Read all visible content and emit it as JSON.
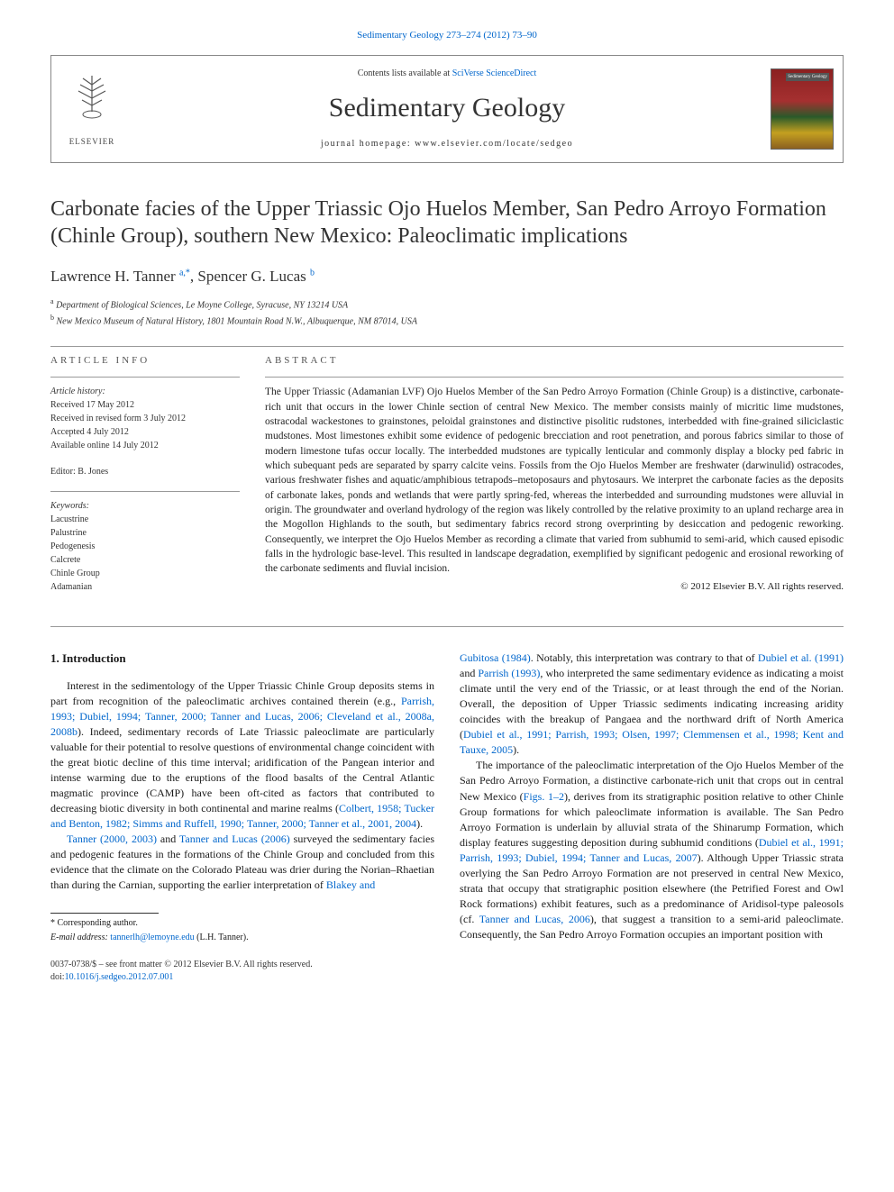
{
  "journal_ref": "Sedimentary Geology 273–274 (2012) 73–90",
  "header": {
    "contents_prefix": "Contents lists available at ",
    "contents_link": "SciVerse ScienceDirect",
    "journal_name": "Sedimentary Geology",
    "homepage_prefix": "journal homepage: ",
    "homepage_url": "www.elsevier.com/locate/sedgeo",
    "publisher_name": "ELSEVIER",
    "cover_tag": "Sedimentary Geology"
  },
  "article": {
    "title": "Carbonate facies of the Upper Triassic Ojo Huelos Member, San Pedro Arroyo Formation (Chinle Group), southern New Mexico: Paleoclimatic implications",
    "authors_html": "Lawrence H. Tanner <span class='sup'>a,</span><span class='sup'>*</span>, Spencer G. Lucas <span class='sup'>b</span>",
    "affiliations": [
      {
        "sup": "a",
        "text": "Department of Biological Sciences, Le Moyne College, Syracuse, NY 13214 USA"
      },
      {
        "sup": "b",
        "text": "New Mexico Museum of Natural History, 1801 Mountain Road N.W., Albuquerque, NM 87014, USA"
      }
    ]
  },
  "article_info": {
    "label": "ARTICLE INFO",
    "history_label": "Article history:",
    "history": [
      "Received 17 May 2012",
      "Received in revised form 3 July 2012",
      "Accepted 4 July 2012",
      "Available online 14 July 2012"
    ],
    "editor_label": "Editor:",
    "editor": "B. Jones",
    "keywords_label": "Keywords:",
    "keywords": [
      "Lacustrine",
      "Palustrine",
      "Pedogenesis",
      "Calcrete",
      "Chinle Group",
      "Adamanian"
    ]
  },
  "abstract": {
    "label": "ABSTRACT",
    "text": "The Upper Triassic (Adamanian LVF) Ojo Huelos Member of the San Pedro Arroyo Formation (Chinle Group) is a distinctive, carbonate-rich unit that occurs in the lower Chinle section of central New Mexico. The member consists mainly of micritic lime mudstones, ostracodal wackestones to grainstones, peloidal grainstones and distinctive pisolitic rudstones, interbedded with fine-grained siliciclastic mudstones. Most limestones exhibit some evidence of pedogenic brecciation and root penetration, and porous fabrics similar to those of modern limestone tufas occur locally. The interbedded mudstones are typically lenticular and commonly display a blocky ped fabric in which subequant peds are separated by sparry calcite veins. Fossils from the Ojo Huelos Member are freshwater (darwinulid) ostracodes, various freshwater fishes and aquatic/amphibious tetrapods–metoposaurs and phytosaurs. We interpret the carbonate facies as the deposits of carbonate lakes, ponds and wetlands that were partly spring-fed, whereas the interbedded and surrounding mudstones were alluvial in origin. The groundwater and overland hydrology of the region was likely controlled by the relative proximity to an upland recharge area in the Mogollon Highlands to the south, but sedimentary fabrics record strong overprinting by desiccation and pedogenic reworking. Consequently, we interpret the Ojo Huelos Member as recording a climate that varied from subhumid to semi-arid, which caused episodic falls in the hydrologic base-level. This resulted in landscape degradation, exemplified by significant pedogenic and erosional reworking of the carbonate sediments and fluvial incision.",
    "copyright": "© 2012 Elsevier B.V. All rights reserved."
  },
  "introduction": {
    "heading": "1. Introduction",
    "col1_p1_pre": "Interest in the sedimentology of the Upper Triassic Chinle Group deposits stems in part from recognition of the paleoclimatic archives contained therein (e.g., ",
    "col1_p1_cite1": "Parrish, 1993; Dubiel, 1994; Tanner, 2000; Tanner and Lucas, 2006; Cleveland et al., 2008a, 2008b",
    "col1_p1_post": "). Indeed, sedimentary records of Late Triassic paleoclimate are particularly valuable for their potential to resolve questions of environmental change coincident with the great biotic decline of this time interval; aridification of the Pangean interior and intense warming due to the eruptions of the flood basalts of the Central Atlantic magmatic province (CAMP) have been oft-cited as factors that contributed to decreasing biotic diversity in both continental and marine realms (",
    "col1_p1_cite2": "Colbert, 1958; Tucker and Benton, 1982; Simms and Ruffell, 1990; Tanner, 2000; Tanner et al., 2001, 2004",
    "col1_p1_end": ").",
    "col1_p2_cite1": "Tanner (2000, 2003)",
    "col1_p2_mid1": " and ",
    "col1_p2_cite2": "Tanner and Lucas (2006)",
    "col1_p2_post": " surveyed the sedimentary facies and pedogenic features in the formations of the Chinle Group and concluded from this evidence that the climate on the Colorado Plateau was drier during the Norian–Rhaetian than during the Carnian, supporting the earlier interpretation of ",
    "col1_p2_cite3": "Blakey and",
    "col2_p1_cite1": "Gubitosa (1984)",
    "col2_p1_mid1": ". Notably, this interpretation was contrary to that of ",
    "col2_p1_cite2": "Dubiel et al. (1991)",
    "col2_p1_mid2": " and ",
    "col2_p1_cite3": "Parrish (1993)",
    "col2_p1_post": ", who interpreted the same sedimentary evidence as indicating a moist climate until the very end of the Triassic, or at least through the end of the Norian. Overall, the deposition of Upper Triassic sediments indicating increasing aridity coincides with the breakup of Pangaea and the northward drift of North America (",
    "col2_p1_cite4": "Dubiel et al., 1991; Parrish, 1993; Olsen, 1997; Clemmensen et al., 1998; Kent and Tauxe, 2005",
    "col2_p1_end": ").",
    "col2_p2_pre": "The importance of the paleoclimatic interpretation of the Ojo Huelos Member of the San Pedro Arroyo Formation, a distinctive carbonate-rich unit that crops out in central New Mexico (",
    "col2_p2_cite1": "Figs. 1–2",
    "col2_p2_mid1": "), derives from its stratigraphic position relative to other Chinle Group formations for which paleoclimate information is available. The San Pedro Arroyo Formation is underlain by alluvial strata of the Shinarump Formation, which display features suggesting deposition during subhumid conditions (",
    "col2_p2_cite2": "Dubiel et al., 1991; Parrish, 1993; Dubiel, 1994; Tanner and Lucas, 2007",
    "col2_p2_mid2": "). Although Upper Triassic strata overlying the San Pedro Arroyo Formation are not preserved in central New Mexico, strata that occupy that stratigraphic position elsewhere (the Petrified Forest and Owl Rock formations) exhibit features, such as a predominance of Aridisol-type paleosols (cf. ",
    "col2_p2_cite3": "Tanner and Lucas, 2006",
    "col2_p2_end": "), that suggest a transition to a semi-arid paleoclimate. Consequently, the San Pedro Arroyo Formation occupies an important position with"
  },
  "footer": {
    "corresponding_marker": "*",
    "corresponding_text": "Corresponding author.",
    "email_label": "E-mail address:",
    "email": "tannerlh@lemoyne.edu",
    "email_attrib": "(L.H. Tanner).",
    "front_matter": "0037-0738/$ – see front matter © 2012 Elsevier B.V. All rights reserved.",
    "doi_prefix": "doi:",
    "doi": "10.1016/j.sedgeo.2012.07.001"
  },
  "colors": {
    "link": "#0066cc",
    "text": "#1a1a1a",
    "divider": "#999999"
  }
}
